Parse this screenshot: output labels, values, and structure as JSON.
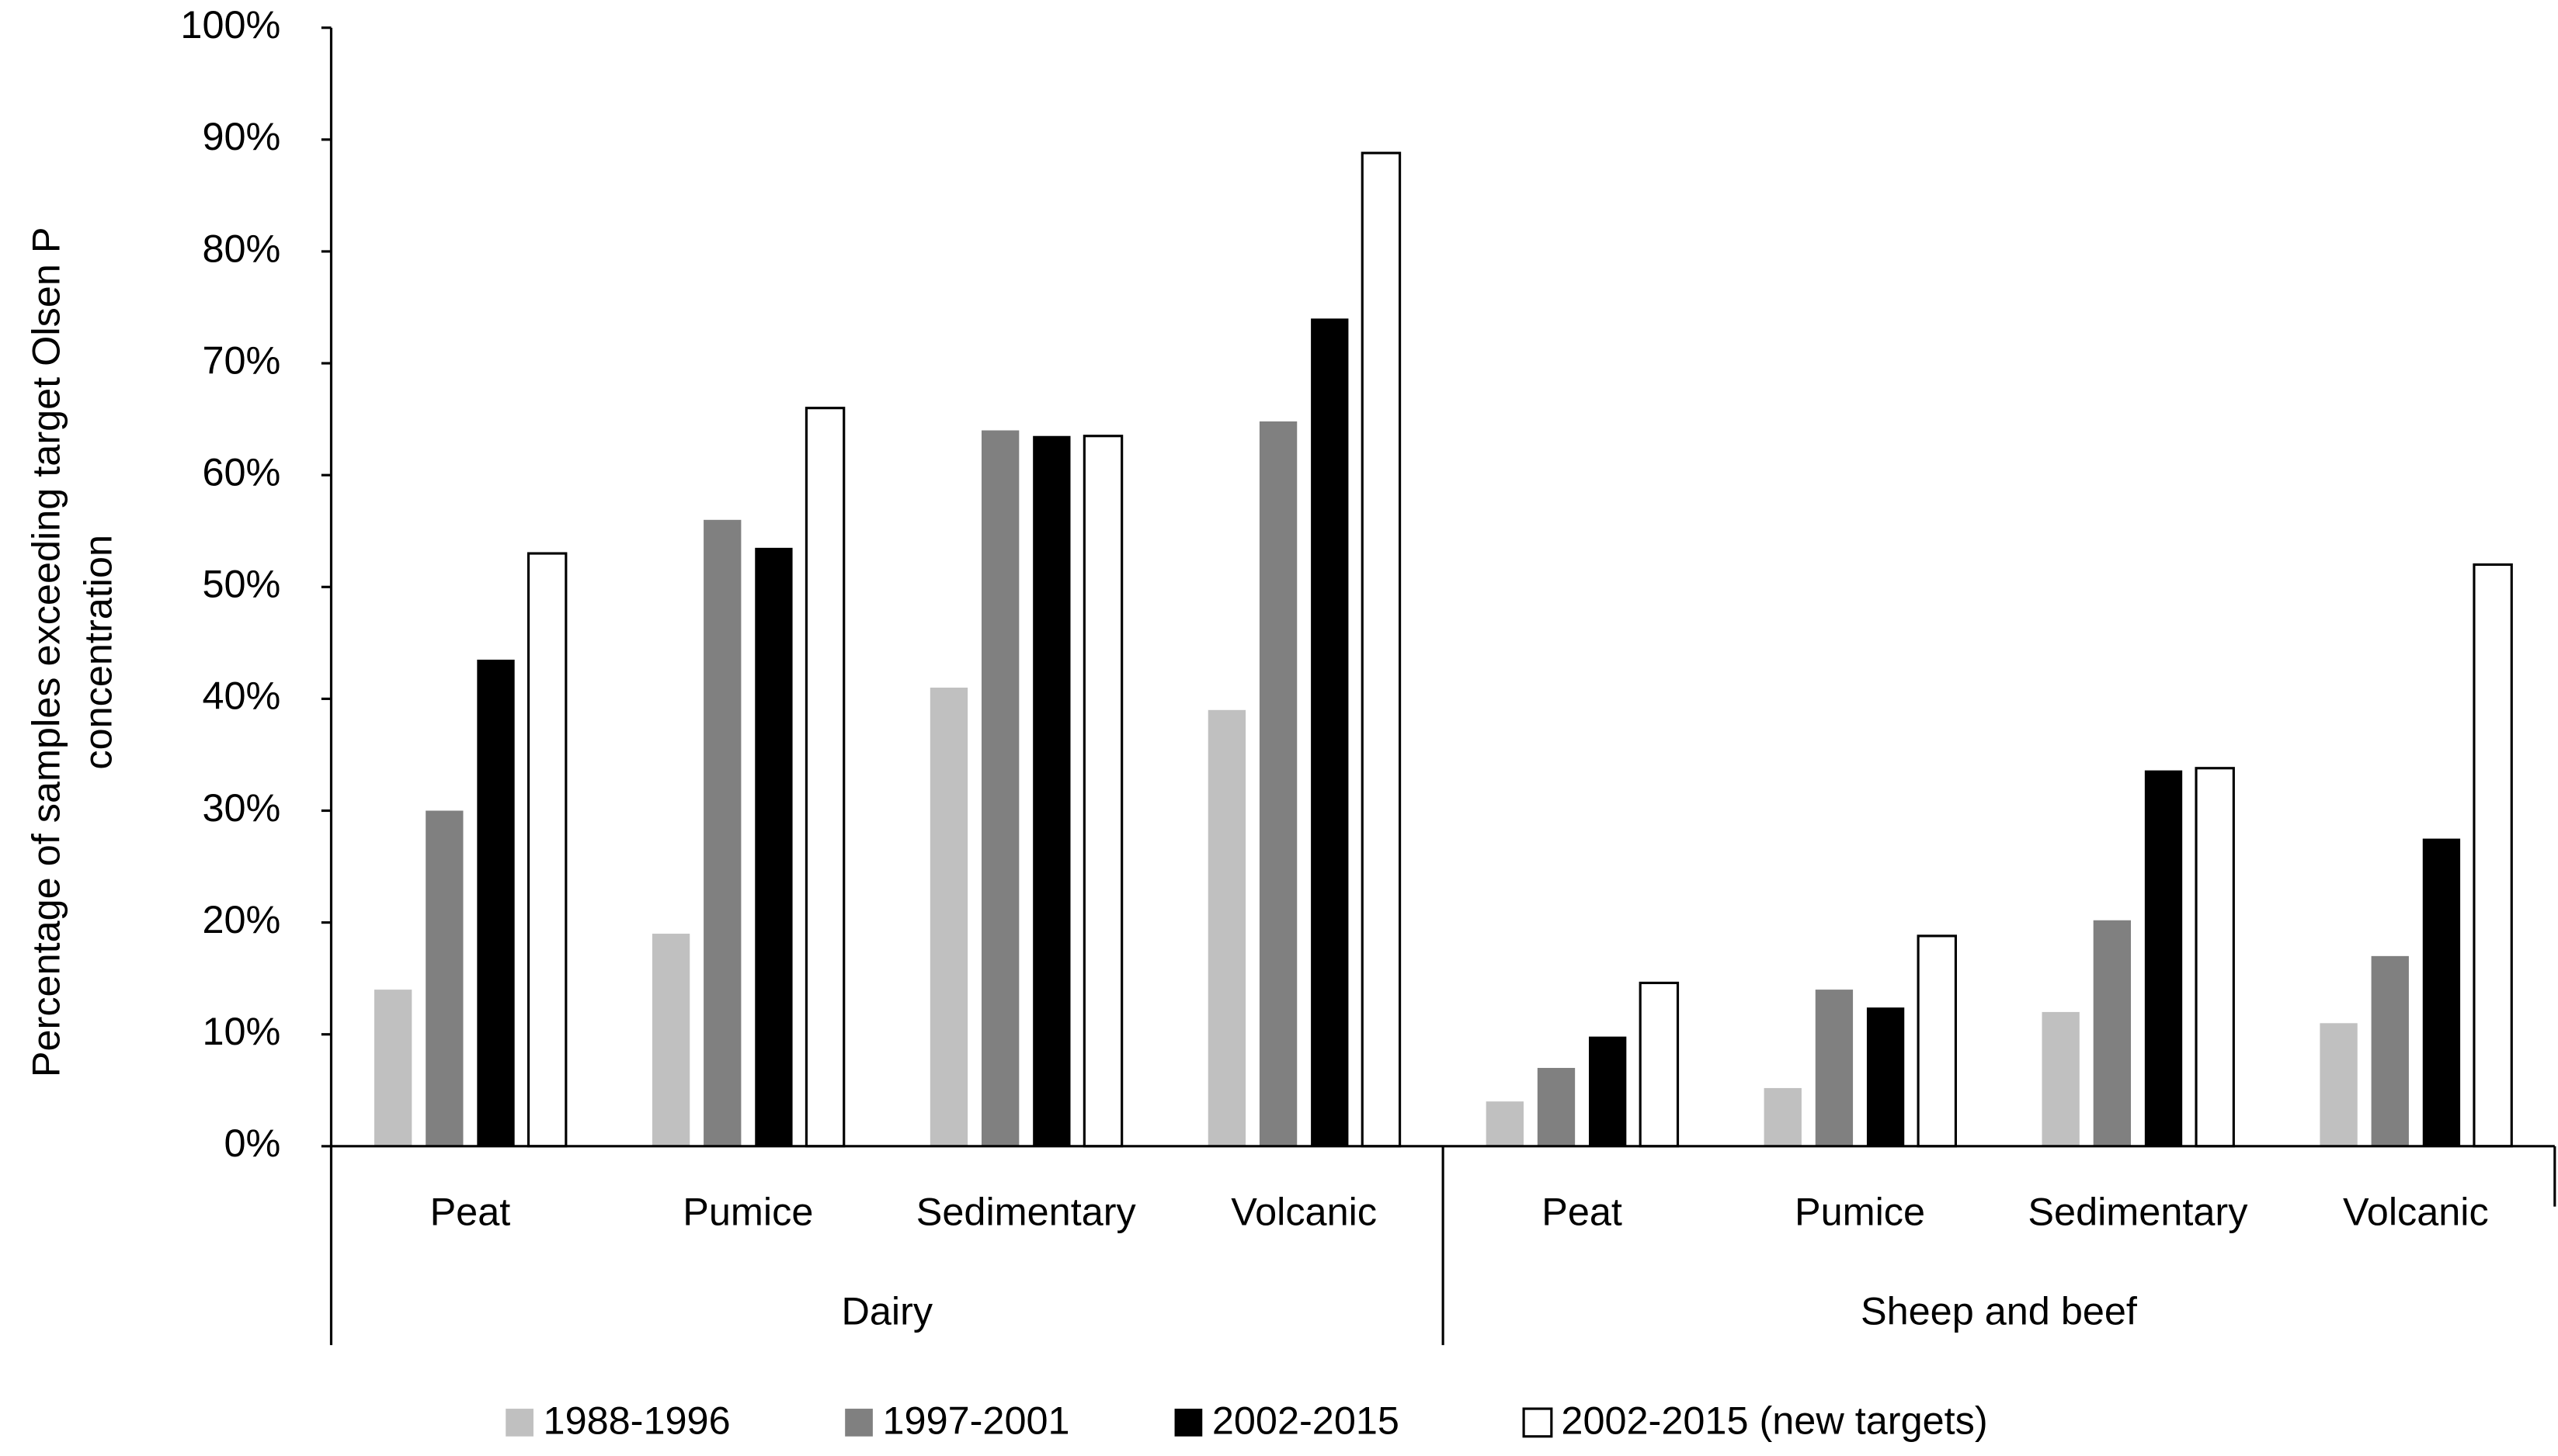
{
  "chart_data": {
    "type": "bar",
    "y_label": [
      "Percentage of samples exceeding target Olsen P",
      "concentration"
    ],
    "groups": [
      {
        "name": "Dairy",
        "categories": [
          "Peat",
          "Pumice",
          "Sedimentary",
          "Volcanic"
        ]
      },
      {
        "name": "Sheep and beef",
        "categories": [
          "Peat",
          "Pumice",
          "Sedimentary",
          "Volcanic"
        ]
      }
    ],
    "series": [
      {
        "name": "1988-1996",
        "color": "#c0c0c0",
        "values": [
          14,
          19,
          41,
          39,
          4,
          5.2,
          12,
          11
        ]
      },
      {
        "name": "1997-2001",
        "color": "#808080",
        "values": [
          30,
          56,
          64,
          64.8,
          7,
          14,
          20.2,
          17
        ]
      },
      {
        "name": "2002-2015",
        "color": "#000000",
        "values": [
          43.5,
          53.5,
          63.5,
          74,
          9.8,
          12.4,
          33.6,
          27.5
        ]
      },
      {
        "name": "2002-2015 (new targets)",
        "color": "#ffffff",
        "values": [
          53,
          66,
          63.5,
          88.8,
          14.6,
          18.8,
          33.8,
          52
        ]
      }
    ],
    "ylim": [
      0,
      100
    ],
    "yticks": [
      {
        "value": 0,
        "label": "0%"
      },
      {
        "value": 10,
        "label": "10%"
      },
      {
        "value": 20,
        "label": "20%"
      },
      {
        "value": 30,
        "label": "30%"
      },
      {
        "value": 40,
        "label": "40%"
      },
      {
        "value": 50,
        "label": "50%"
      },
      {
        "value": 60,
        "label": "60%"
      },
      {
        "value": 70,
        "label": "70%"
      },
      {
        "value": 80,
        "label": "80%"
      },
      {
        "value": 90,
        "label": "90%"
      },
      {
        "value": 100,
        "label": "100%"
      }
    ],
    "grid": false,
    "legend": "bottom"
  }
}
